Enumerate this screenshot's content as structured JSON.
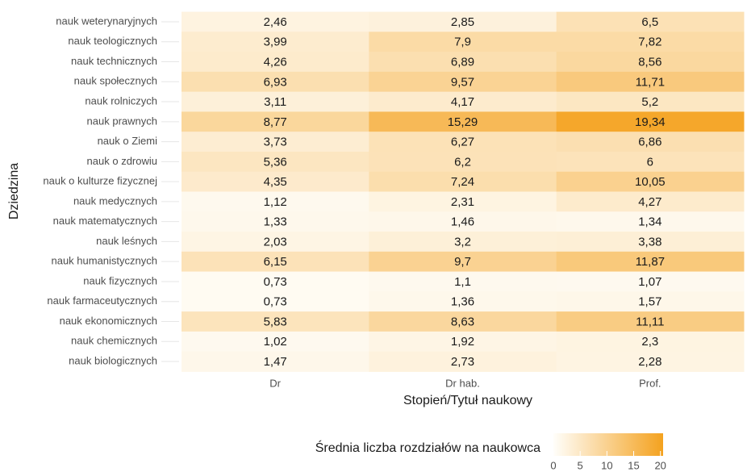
{
  "chart_data": {
    "type": "heatmap",
    "x_label": "Stopień/Tytuł naukowy",
    "y_label": "Dziedzina",
    "x_categories": [
      "Dr",
      "Dr hab.",
      "Prof."
    ],
    "y_categories": [
      "nauk weterynaryjnych",
      "nauk teologicznych",
      "nauk technicznych",
      "nauk społecznych",
      "nauk rolniczych",
      "nauk prawnych",
      "nauk o Ziemi",
      "nauk o zdrowiu",
      "nauk o kulturze fizycznej",
      "nauk medycznych",
      "nauk matematycznych",
      "nauk leśnych",
      "nauk humanistycznych",
      "nauk fizycznych",
      "nauk farmaceutycznych",
      "nauk ekonomicznych",
      "nauk chemicznych",
      "nauk biologicznych"
    ],
    "values": [
      [
        2.46,
        2.85,
        6.5
      ],
      [
        3.99,
        7.9,
        7.82
      ],
      [
        4.26,
        6.89,
        8.56
      ],
      [
        6.93,
        9.57,
        11.71
      ],
      [
        3.11,
        4.17,
        5.2
      ],
      [
        8.77,
        15.29,
        19.34
      ],
      [
        3.73,
        6.27,
        6.86
      ],
      [
        5.36,
        6.2,
        6
      ],
      [
        4.35,
        7.24,
        10.05
      ],
      [
        1.12,
        2.31,
        4.27
      ],
      [
        1.33,
        1.46,
        1.34
      ],
      [
        2.03,
        3.2,
        3.38
      ],
      [
        6.15,
        9.7,
        11.87
      ],
      [
        0.73,
        1.1,
        1.07
      ],
      [
        0.73,
        1.36,
        1.57
      ],
      [
        5.83,
        8.63,
        11.11
      ],
      [
        1.02,
        1.92,
        2.3
      ],
      [
        1.47,
        2.73,
        2.28
      ]
    ],
    "value_labels": [
      [
        "2,46",
        "2,85",
        "6,5"
      ],
      [
        "3,99",
        "7,9",
        "7,82"
      ],
      [
        "4,26",
        "6,89",
        "8,56"
      ],
      [
        "6,93",
        "9,57",
        "11,71"
      ],
      [
        "3,11",
        "4,17",
        "5,2"
      ],
      [
        "8,77",
        "15,29",
        "19,34"
      ],
      [
        "3,73",
        "6,27",
        "6,86"
      ],
      [
        "5,36",
        "6,2",
        "6"
      ],
      [
        "4,35",
        "7,24",
        "10,05"
      ],
      [
        "1,12",
        "2,31",
        "4,27"
      ],
      [
        "1,33",
        "1,46",
        "1,34"
      ],
      [
        "2,03",
        "3,2",
        "3,38"
      ],
      [
        "6,15",
        "9,7",
        "11,87"
      ],
      [
        "0,73",
        "1,1",
        "1,07"
      ],
      [
        "0,73",
        "1,36",
        "1,57"
      ],
      [
        "5,83",
        "8,63",
        "11,11"
      ],
      [
        "1,02",
        "1,92",
        "2,3"
      ],
      [
        "1,47",
        "2,73",
        "2,28"
      ]
    ],
    "legend_title": "Średnia liczba rozdziałów na naukowca",
    "colorlim": [
      0,
      20.5
    ],
    "colorticks": [
      0,
      5,
      10,
      15,
      20
    ],
    "colors": [
      "#fffefa",
      "#f4a21f"
    ]
  }
}
